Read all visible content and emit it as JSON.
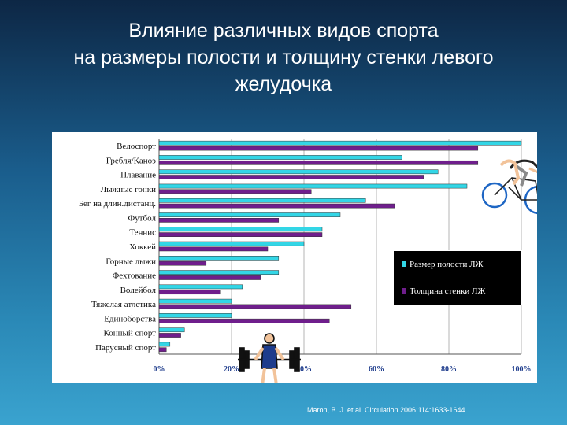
{
  "title": {
    "line1": "Влияние различных видов спорта",
    "line2": "на размеры полости и толщину стенки левого",
    "line3": "желудочка"
  },
  "citation": "Maron, B. J. et al. Circulation 2006;114:1633-1644",
  "colors": {
    "cavity": "#33d6e6",
    "wall": "#6f1e8c",
    "legend_bg": "#000000",
    "panel_bg": "#ffffff"
  },
  "legend": {
    "position": "right-middle",
    "items": [
      {
        "label": "Размер полости ЛЖ",
        "color": "#33d6e6"
      },
      {
        "label": "Толщина стенки ЛЖ",
        "color": "#6f1e8c"
      }
    ]
  },
  "icons": [
    "cyclist-icon",
    "weightlifter-icon"
  ],
  "chart_data": {
    "type": "bar",
    "orientation": "horizontal",
    "title": "",
    "xlabel": "",
    "ylabel": "",
    "xlim": [
      0,
      100
    ],
    "x_ticks": [
      "0%",
      "20%",
      "40%",
      "60%",
      "80%",
      "100%"
    ],
    "grid": true,
    "categories": [
      "Велоспорт",
      "Гребля/Каноэ",
      "Плавание",
      "Лыжные гонки",
      "Бег на длин.дистанц.",
      "Футбол",
      "Теннис",
      "Хоккей",
      "Горные лыжи",
      "Фехтование",
      "Волейбол",
      "Тяжелая атлетика",
      "Единоборства",
      "Конный спорт",
      "Парусный спорт"
    ],
    "series": [
      {
        "name": "Размер полости ЛЖ",
        "values": [
          100,
          67,
          77,
          85,
          57,
          50,
          45,
          40,
          33,
          33,
          23,
          20,
          20,
          7,
          3
        ]
      },
      {
        "name": "Толщина стенки ЛЖ",
        "values": [
          88,
          88,
          73,
          42,
          65,
          33,
          45,
          30,
          13,
          28,
          17,
          53,
          47,
          6,
          2
        ]
      }
    ]
  }
}
